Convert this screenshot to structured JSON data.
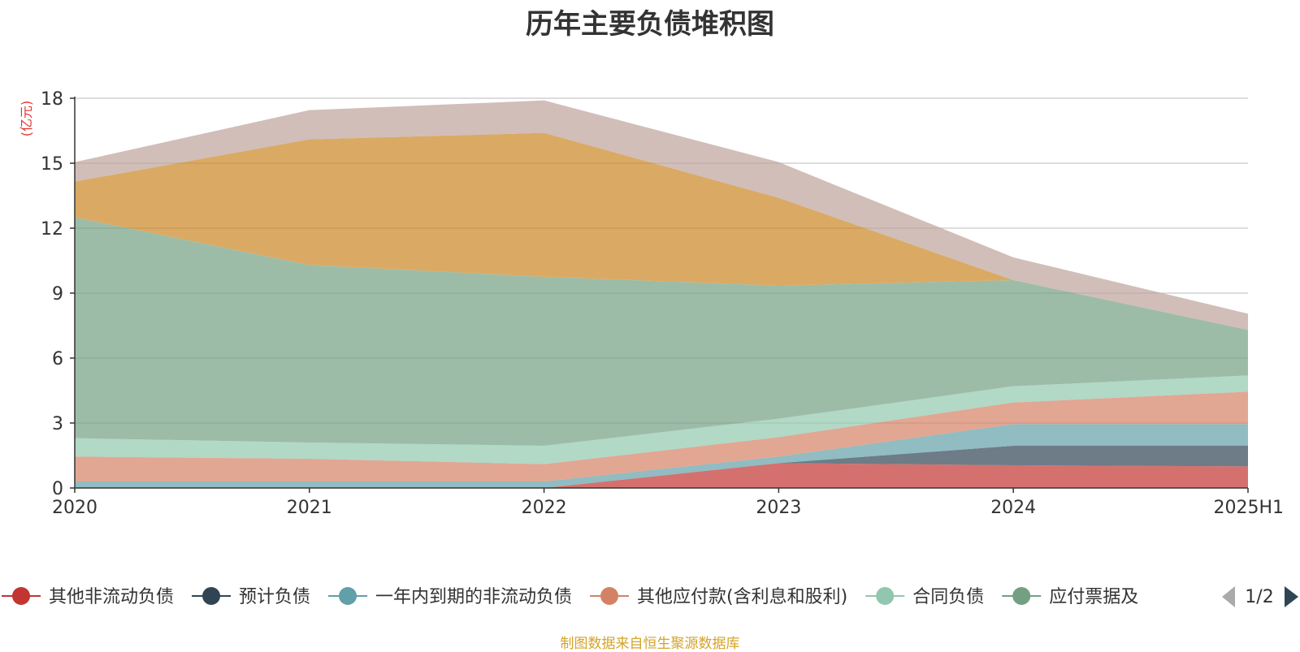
{
  "colors": {
    "series": [
      "#c23531",
      "#2f4554",
      "#61a0a8",
      "#d48265",
      "#91c7ae",
      "#749f83",
      "#ca8622",
      "#bda29a"
    ],
    "title": "#333333",
    "axis_text": "#333333",
    "unit": "#e3342f",
    "source": "#d4a32a",
    "grid": "#bbbbbb",
    "pager_inactive": "#aaaaaa",
    "pager_active": "#2f4554"
  },
  "chart_data": {
    "type": "area",
    "stacked": true,
    "title": "历年主要负债堆积图",
    "unit_label": "(亿元)",
    "categories": [
      "2020",
      "2021",
      "2022",
      "2023",
      "2024",
      "2025H1"
    ],
    "ylim": [
      0,
      18
    ],
    "yticks": [
      0,
      3,
      6,
      9,
      12,
      15,
      18
    ],
    "grid": true,
    "legend_position": "bottom",
    "series": [
      {
        "name": "其他非流动负债",
        "values": [
          0,
          0,
          0,
          1.15,
          1.05,
          1.0
        ]
      },
      {
        "name": "预计负债",
        "values": [
          0,
          0,
          0,
          0,
          0.9,
          0.95
        ]
      },
      {
        "name": "一年内到期的非流动负债",
        "values": [
          0.3,
          0.3,
          0.3,
          0.3,
          1.0,
          1.0
        ]
      },
      {
        "name": "其他应付款(含利息和股利)",
        "values": [
          1.15,
          1.05,
          0.8,
          0.9,
          1.0,
          1.5
        ]
      },
      {
        "name": "合同负债",
        "values": [
          0.85,
          0.75,
          0.85,
          0.85,
          0.75,
          0.75
        ]
      },
      {
        "name": "应付票据及应付账款",
        "values": [
          10.2,
          8.2,
          7.8,
          6.15,
          4.9,
          2.1
        ]
      },
      {
        "name": "",
        "values": [
          1.65,
          5.8,
          6.65,
          4.05,
          0,
          0
        ]
      },
      {
        "name": "",
        "values": [
          0.9,
          1.35,
          1.5,
          1.65,
          1.05,
          0.75
        ]
      }
    ]
  },
  "legend": {
    "items": [
      "其他非流动负债",
      "预计负债",
      "一年内到期的非流动负债",
      "其他应付款(含利息和股利)",
      "合同负债",
      "应付票据及"
    ],
    "page": "1/2"
  },
  "source_note": "制图数据来自恒生聚源数据库"
}
